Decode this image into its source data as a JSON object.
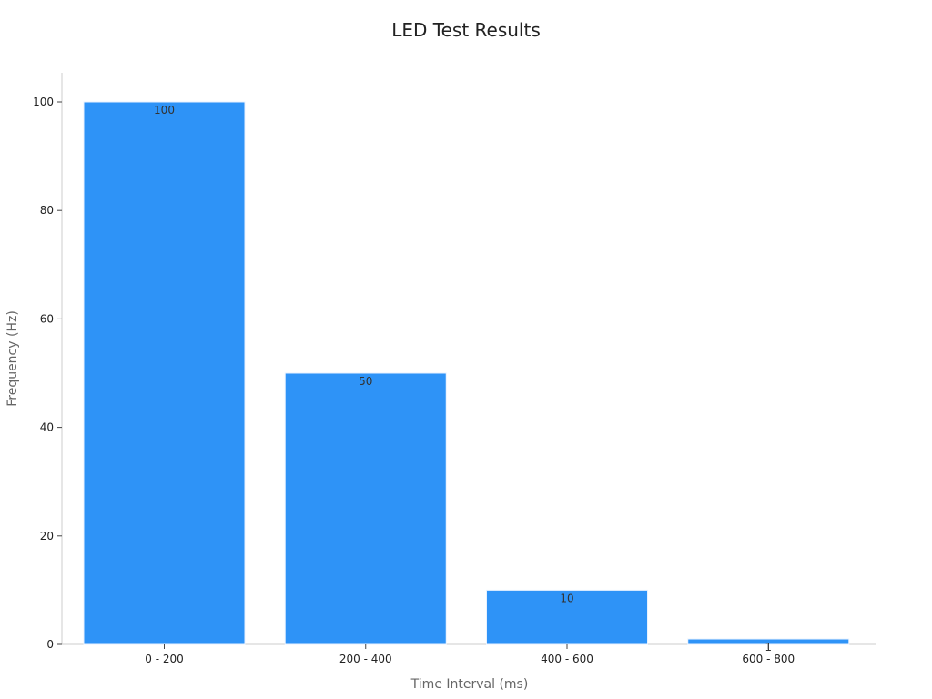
{
  "chart_data": {
    "type": "bar",
    "title": "LED Test Results",
    "xlabel": "Time Interval (ms)",
    "ylabel": "Frequency (Hz)",
    "categories": [
      "0 - 200",
      "200 - 400",
      "400 - 600",
      "600 - 800"
    ],
    "values": [
      100,
      50,
      10,
      1
    ],
    "data_labels": [
      "100",
      "50",
      "10",
      "1"
    ],
    "ylim": [
      0,
      105
    ],
    "yticks": [
      0,
      20,
      40,
      60,
      80,
      100
    ],
    "ytick_labels": [
      "0",
      "20",
      "40",
      "60",
      "80",
      "100"
    ],
    "grid": false,
    "legend": "none",
    "bar_color": "#2e93f7"
  }
}
